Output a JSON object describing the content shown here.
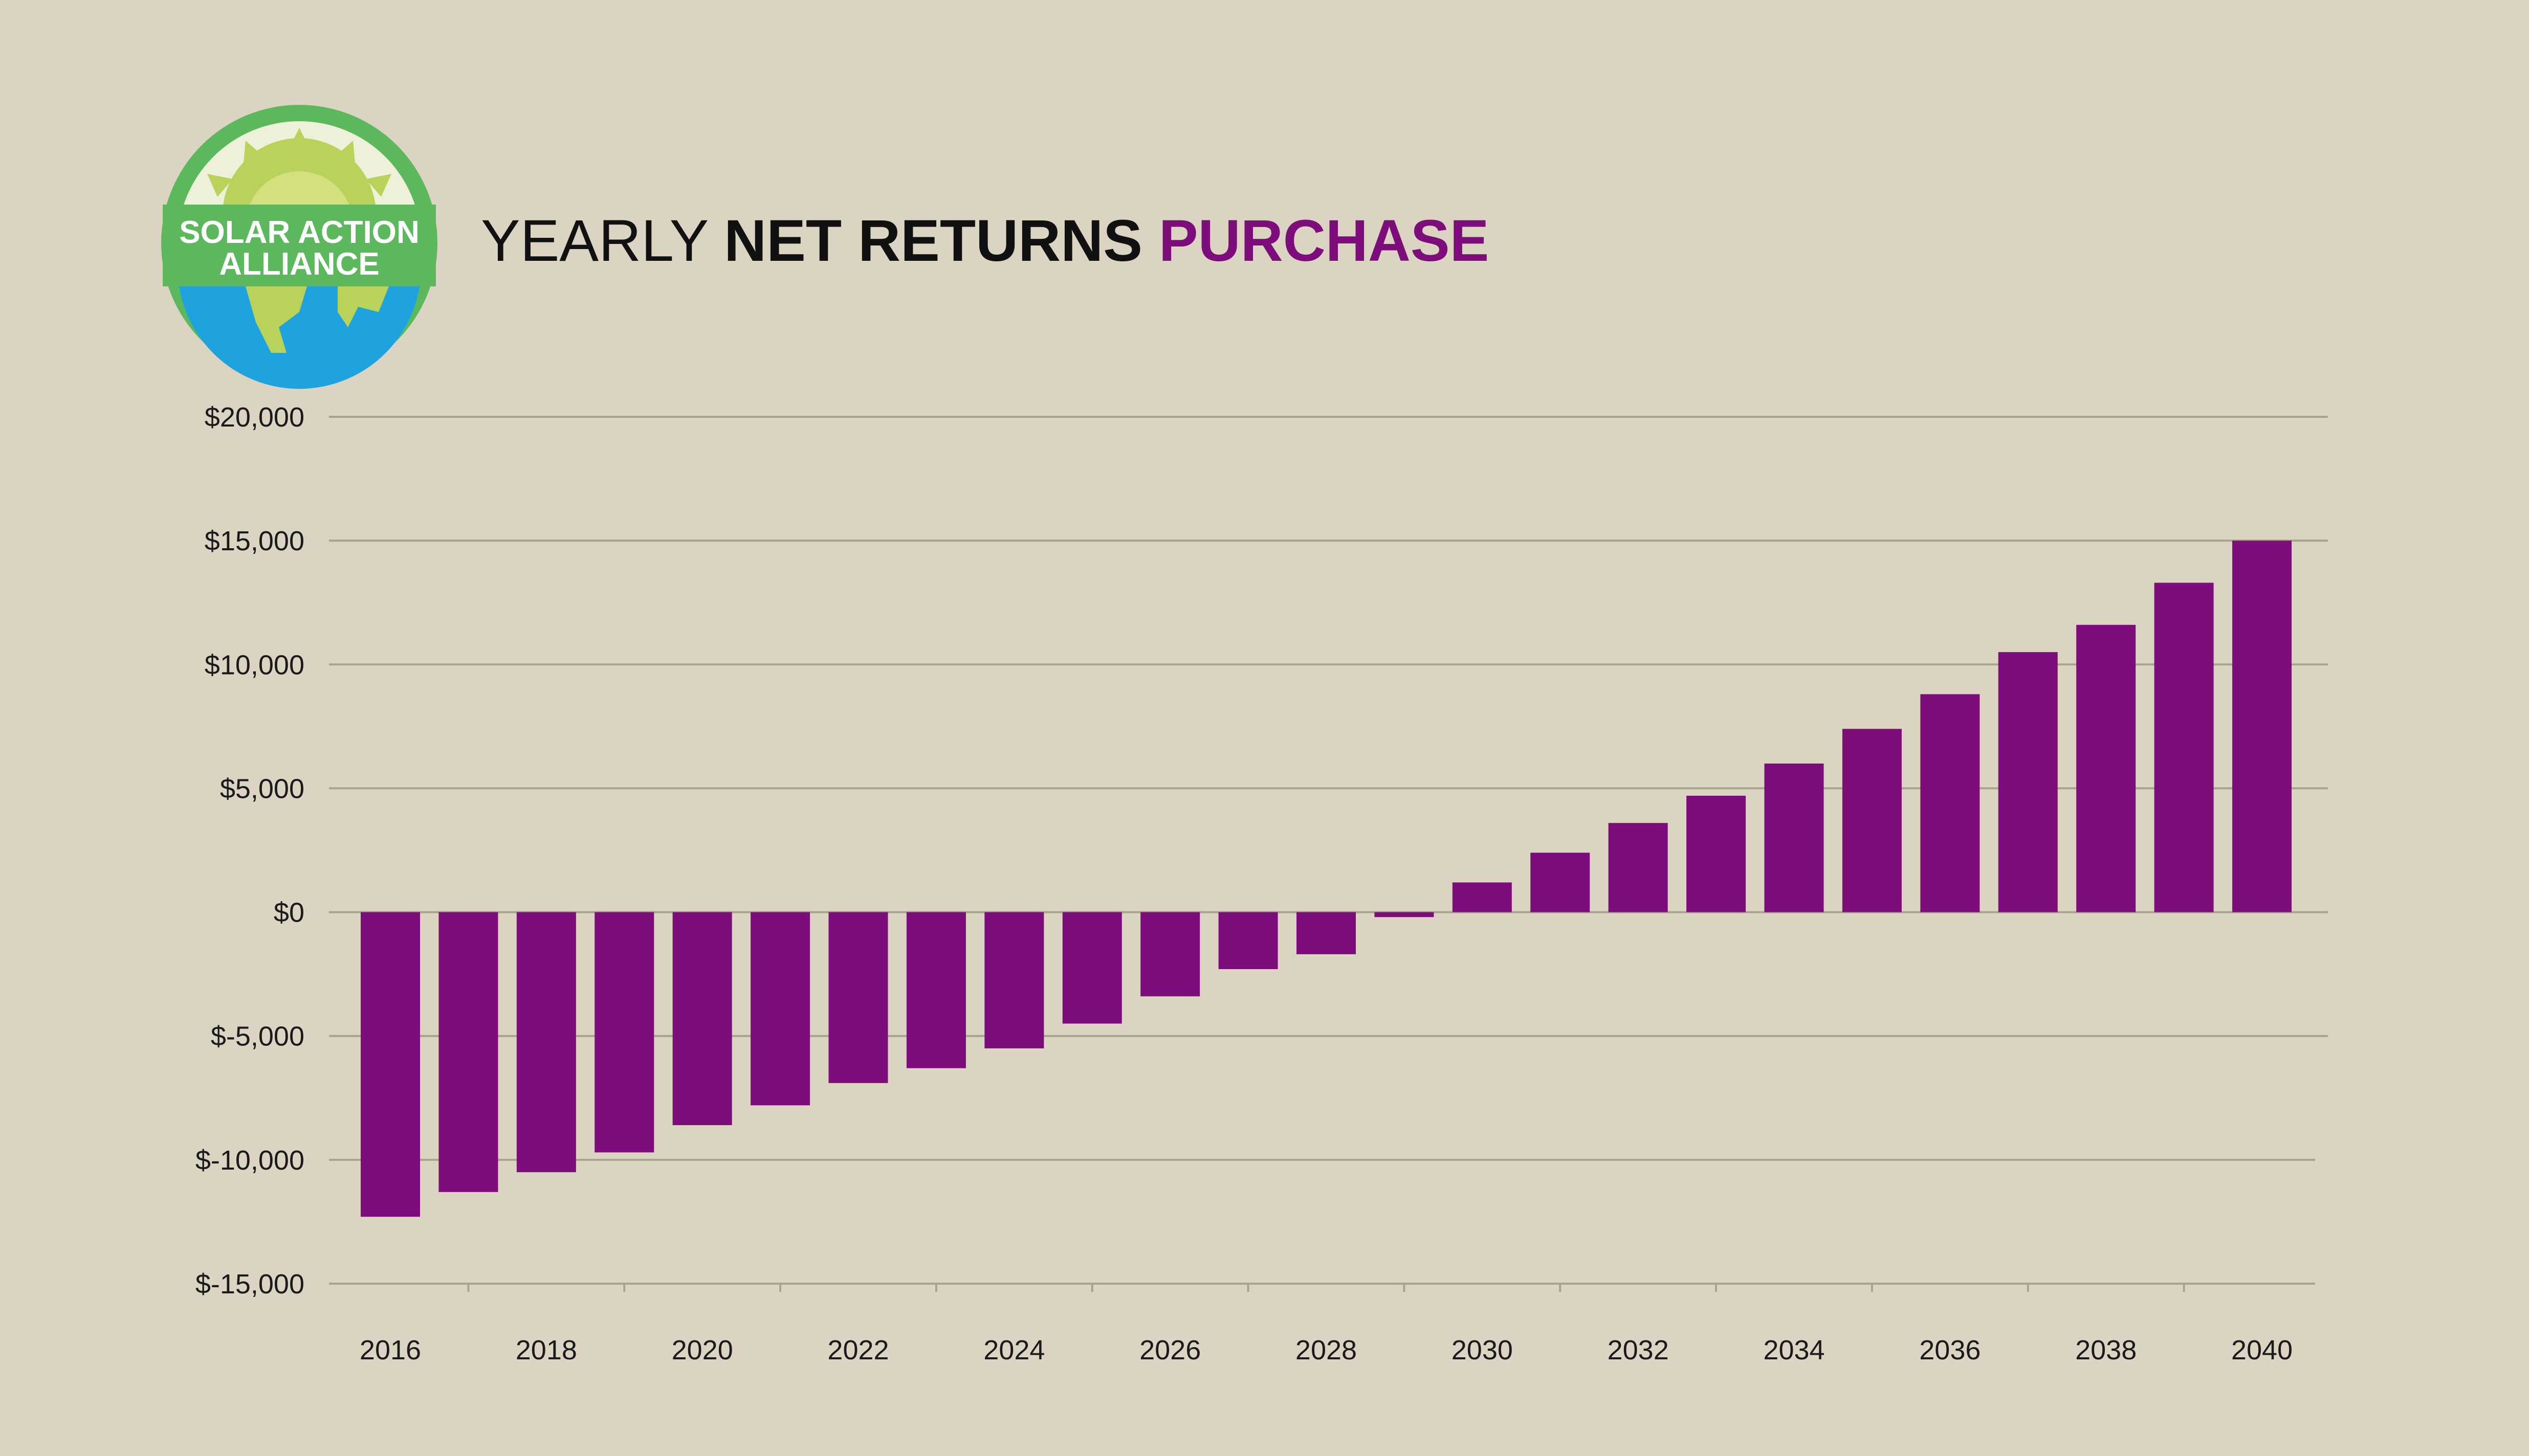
{
  "logo": {
    "line1": "SOLAR ACTION",
    "line2": "ALLIANCE"
  },
  "title": {
    "part1": "YEARLY ",
    "part2": "NET RETURNS",
    "part3": " PURCHASE"
  },
  "colors": {
    "background": "#dbd4c2",
    "bar": "#7d0d7a",
    "grid": "#a9a290",
    "title_accent": "#7d0d7a",
    "title_text": "#111111",
    "logo_green": "#5cb85c",
    "logo_sun": "#b9d35a",
    "logo_sea": "#1ea3df"
  },
  "chart_data": {
    "type": "bar",
    "title": "YEARLY NET RETURNS PURCHASE",
    "xlabel": "",
    "ylabel": "",
    "ylim": [
      -15000,
      20000
    ],
    "yticks": [
      20000,
      15000,
      10000,
      5000,
      0,
      -5000,
      -10000,
      -15000
    ],
    "ytick_labels": [
      "$20,000",
      "$15,000",
      "$10,000",
      "$5,000",
      "$0",
      "$-5,000",
      "$-10,000",
      "$-15,000"
    ],
    "xtick_labels": [
      "2016",
      "2018",
      "2020",
      "2022",
      "2024",
      "2026",
      "2028",
      "2030",
      "2032",
      "2034",
      "2036",
      "2038",
      "2040"
    ],
    "grid": true,
    "categories": [
      "2016",
      "2017",
      "2018",
      "2019",
      "2020",
      "2021",
      "2022",
      "2023",
      "2024",
      "2025",
      "2026",
      "2027",
      "2028",
      "2029",
      "2030",
      "2031",
      "2032",
      "2033",
      "2034",
      "2035",
      "2036",
      "2037",
      "2038",
      "2039",
      "2040"
    ],
    "values": [
      -12300,
      -11300,
      -10500,
      -9700,
      -8600,
      -7800,
      -6900,
      -6300,
      -5500,
      -4500,
      -3400,
      -2300,
      -1700,
      -200,
      1200,
      2400,
      3600,
      4700,
      6000,
      7400,
      8800,
      10500,
      11600,
      13300,
      15000
    ]
  }
}
